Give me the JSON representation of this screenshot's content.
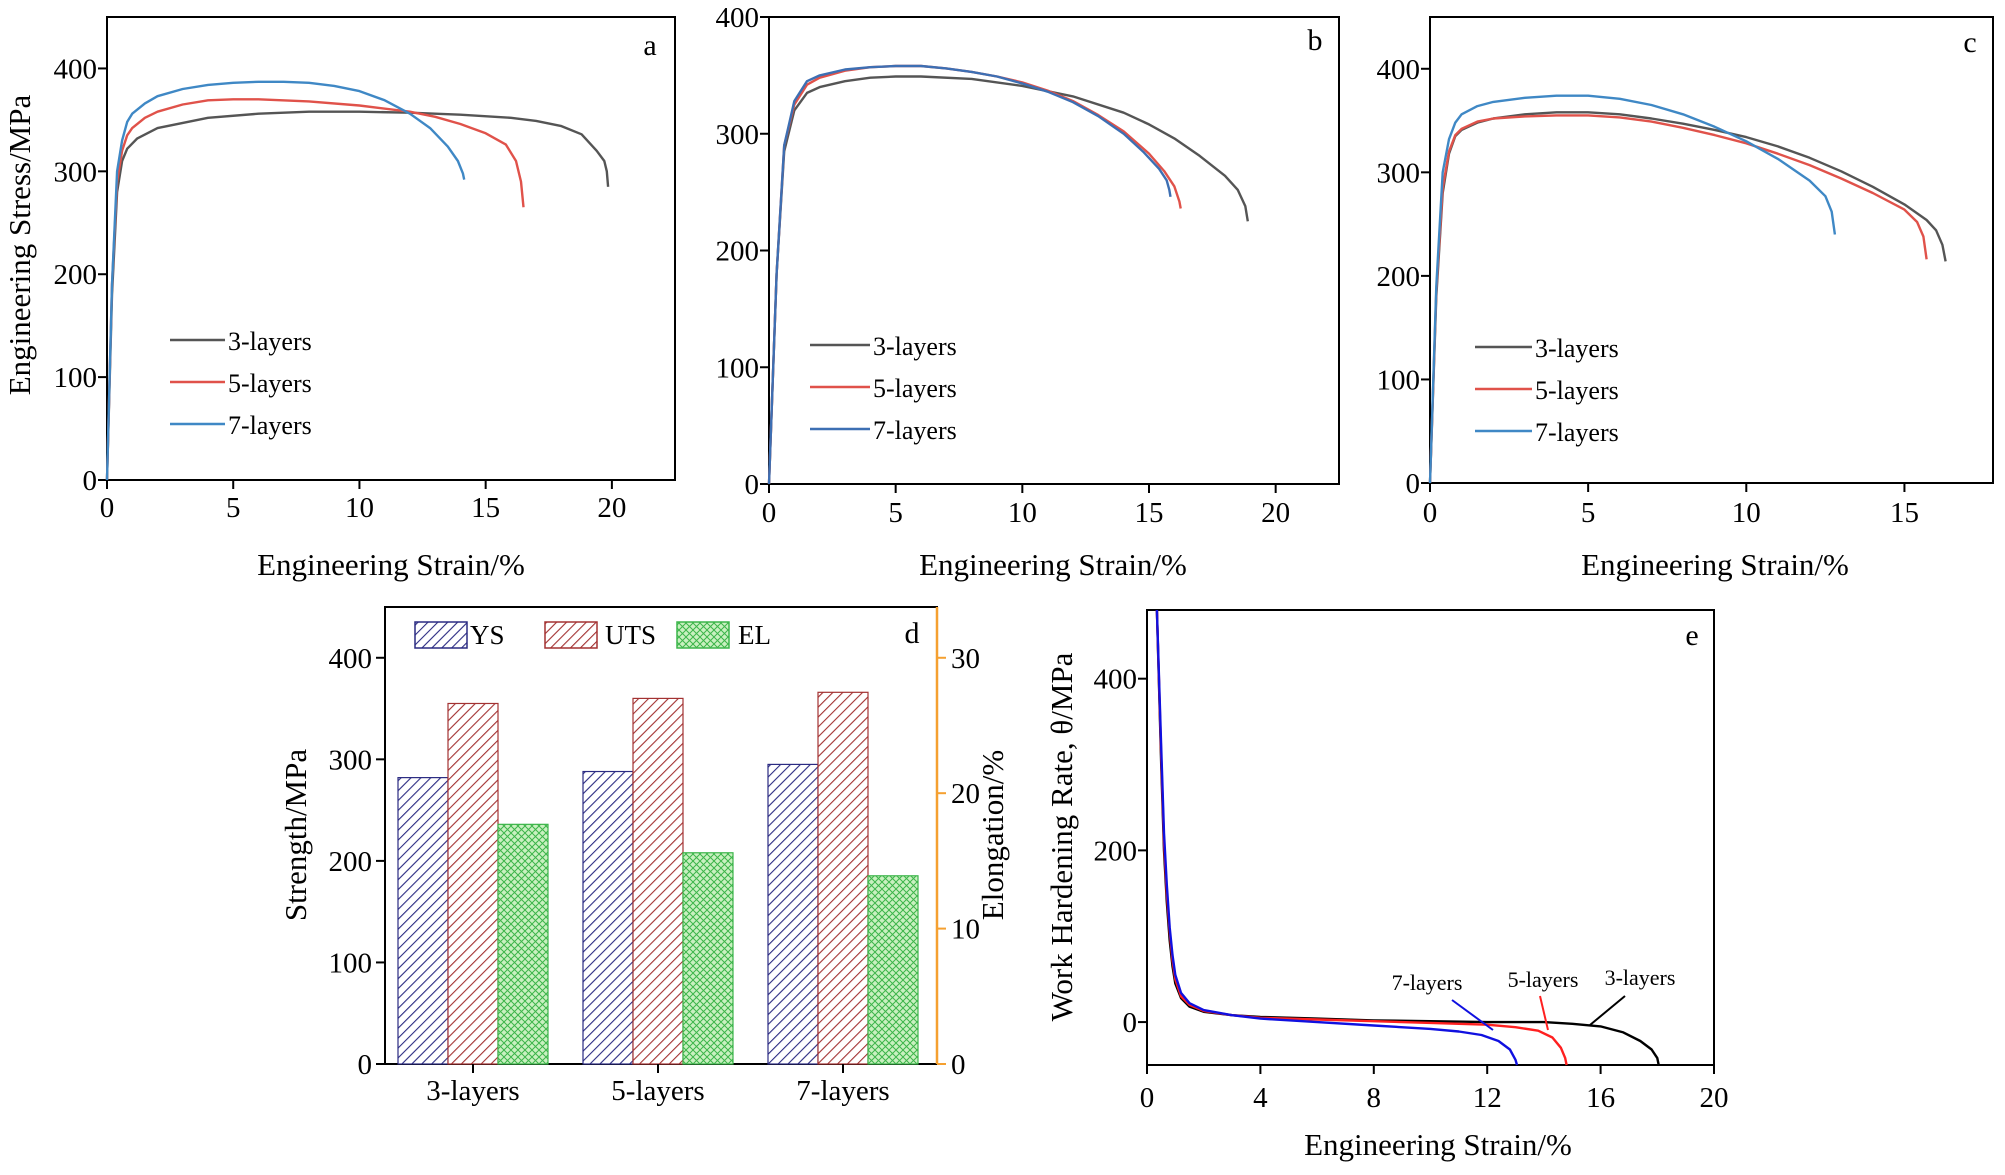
{
  "figure": {
    "panel_a": {
      "letter": "a",
      "xlabel": "Engineering Strain/%",
      "ylabel": "Engineering Stress/MPa",
      "legend": [
        "3-layers",
        "5-layers",
        "7-layers"
      ]
    },
    "panel_b": {
      "letter": "b",
      "xlabel": "Engineering Strain/%",
      "ylabel": "",
      "legend": [
        "3-layers",
        "5-layers",
        "7-layers"
      ]
    },
    "panel_c": {
      "letter": "c",
      "xlabel": "Engineering Strain/%",
      "ylabel": "",
      "legend": [
        "3-layers",
        "5-layers",
        "7-layers"
      ]
    },
    "panel_d": {
      "letter": "d",
      "ylabel_left": "Strength/MPa",
      "ylabel_right": "Elongation/%",
      "legend": [
        "YS",
        "UTS",
        "EL"
      ]
    },
    "panel_e": {
      "letter": "e",
      "xlabel": "Engineering Strain/%",
      "ylabel": "Work Hardening Rate, θ/MPa",
      "annotations": [
        "7-layers",
        "5-layers",
        "3-layers"
      ]
    }
  },
  "colors": {
    "three_layers": "#555555",
    "five_layers": "#e0524a",
    "seven_layers": "#3f88c5",
    "seven_layers_c": "#3d6fb3",
    "ys": "#2b2b82",
    "uts": "#a33232",
    "el": "#3cb54a",
    "el_fill": "#c9f0c0",
    "elongation_axis": "#f5a030",
    "e_three": "#000000",
    "e_five": "#ff2020",
    "e_seven": "#1010e0"
  },
  "chart_data": [
    {
      "id": "a",
      "type": "line",
      "xlim": [
        0,
        22.5
      ],
      "ylim": [
        0,
        450
      ],
      "xticks": [
        0,
        5,
        10,
        15,
        20
      ],
      "yticks": [
        0,
        100,
        200,
        300,
        400
      ],
      "series": [
        {
          "name": "3-layers",
          "color_key": "three_layers",
          "x": [
            0,
            0.2,
            0.4,
            0.6,
            0.8,
            1.2,
            2,
            4,
            6,
            8,
            10,
            12,
            14,
            16,
            17,
            18,
            18.8,
            19.4,
            19.7,
            19.8,
            19.85
          ],
          "y": [
            0,
            180,
            280,
            310,
            322,
            332,
            342,
            352,
            356,
            358,
            358,
            357,
            355,
            352,
            349,
            344,
            336,
            320,
            310,
            300,
            285
          ]
        },
        {
          "name": "5-layers",
          "color_key": "five_layers",
          "x": [
            0,
            0.2,
            0.4,
            0.6,
            0.8,
            1,
            1.5,
            2,
            3,
            4,
            5,
            6,
            8,
            10,
            12,
            13,
            14,
            15,
            15.8,
            16.2,
            16.4,
            16.5
          ],
          "y": [
            0,
            190,
            290,
            320,
            335,
            342,
            352,
            358,
            365,
            369,
            370,
            370,
            368,
            364,
            358,
            353,
            346,
            337,
            326,
            310,
            290,
            265
          ]
        },
        {
          "name": "7-layers",
          "color_key": "seven_layers",
          "x": [
            0,
            0.2,
            0.4,
            0.6,
            0.8,
            1,
            1.5,
            2,
            3,
            4,
            5,
            6,
            7,
            8,
            9,
            10,
            11,
            12,
            12.8,
            13.5,
            13.9,
            14.1,
            14.15
          ],
          "y": [
            0,
            190,
            300,
            330,
            348,
            356,
            366,
            373,
            380,
            384,
            386,
            387,
            387,
            386,
            383,
            378,
            369,
            356,
            342,
            324,
            310,
            298,
            292
          ]
        }
      ]
    },
    {
      "id": "b",
      "type": "line",
      "xlim": [
        0,
        22.5
      ],
      "ylim": [
        0,
        400
      ],
      "xticks": [
        0,
        5,
        10,
        15,
        20
      ],
      "yticks": [
        0,
        100,
        200,
        300,
        400
      ],
      "series": [
        {
          "name": "3-layers",
          "color_key": "three_layers",
          "x": [
            0,
            0.3,
            0.6,
            1,
            1.5,
            2,
            3,
            4,
            5,
            6,
            8,
            10,
            12,
            14,
            15,
            16,
            17,
            18,
            18.5,
            18.8,
            18.9
          ],
          "y": [
            0,
            180,
            285,
            320,
            335,
            340,
            345,
            348,
            349,
            349,
            347,
            341,
            332,
            318,
            308,
            296,
            281,
            264,
            252,
            238,
            225
          ]
        },
        {
          "name": "5-layers",
          "color_key": "five_layers",
          "x": [
            0,
            0.3,
            0.6,
            1,
            1.5,
            2,
            3,
            4,
            5,
            6,
            7,
            8,
            9,
            10,
            11,
            12,
            13,
            14,
            15,
            15.6,
            16,
            16.2,
            16.25
          ],
          "y": [
            0,
            180,
            290,
            325,
            342,
            348,
            354,
            357,
            358,
            358,
            356,
            353,
            349,
            344,
            337,
            328,
            316,
            302,
            283,
            268,
            255,
            242,
            236
          ]
        },
        {
          "name": "7-layers",
          "color_key": "seven_layers_c",
          "x": [
            0,
            0.3,
            0.6,
            1,
            1.5,
            2,
            3,
            4,
            5,
            6,
            7,
            8,
            9,
            10,
            11,
            12,
            13,
            14,
            14.8,
            15.4,
            15.7,
            15.8,
            15.85
          ],
          "y": [
            0,
            180,
            290,
            328,
            345,
            350,
            355,
            357,
            358,
            358,
            356,
            353,
            349,
            343,
            336,
            327,
            315,
            300,
            284,
            270,
            260,
            252,
            246
          ]
        }
      ]
    },
    {
      "id": "c",
      "type": "line",
      "xlim": [
        0,
        17.8
      ],
      "ylim": [
        0,
        450
      ],
      "xticks": [
        0,
        5,
        10,
        15
      ],
      "yticks": [
        0,
        100,
        200,
        300,
        400
      ],
      "series": [
        {
          "name": "3-layers",
          "color_key": "three_layers",
          "x": [
            0,
            0.2,
            0.4,
            0.6,
            0.8,
            1,
            1.5,
            2,
            3,
            4,
            5,
            6,
            7,
            8,
            9,
            10,
            11,
            12,
            13,
            14,
            15,
            15.7,
            16,
            16.2,
            16.3
          ],
          "y": [
            0,
            180,
            280,
            318,
            335,
            341,
            348,
            352,
            356,
            358,
            358,
            356,
            352,
            347,
            341,
            334,
            325,
            314,
            301,
            286,
            269,
            254,
            244,
            230,
            214
          ]
        },
        {
          "name": "5-layers",
          "color_key": "five_layers",
          "x": [
            0,
            0.2,
            0.4,
            0.6,
            0.8,
            1,
            1.5,
            2,
            3,
            4,
            5,
            6,
            7,
            8,
            9,
            10,
            11,
            12,
            13,
            14,
            15,
            15.4,
            15.6,
            15.7
          ],
          "y": [
            0,
            185,
            285,
            320,
            336,
            342,
            349,
            352,
            354,
            355,
            355,
            353,
            349,
            343,
            336,
            328,
            318,
            307,
            294,
            280,
            264,
            252,
            238,
            216
          ]
        },
        {
          "name": "7-layers",
          "color_key": "seven_layers",
          "x": [
            0,
            0.2,
            0.4,
            0.6,
            0.8,
            1,
            1.5,
            2,
            3,
            4,
            5,
            6,
            7,
            8,
            9,
            10,
            11,
            12,
            12.5,
            12.7,
            12.8
          ],
          "y": [
            0,
            190,
            300,
            332,
            348,
            356,
            364,
            368,
            372,
            374,
            374,
            371,
            365,
            356,
            344,
            330,
            313,
            292,
            277,
            262,
            240
          ]
        }
      ]
    },
    {
      "id": "d",
      "type": "bar",
      "categories": [
        "3-layers",
        "5-layers",
        "7-layers"
      ],
      "ylim": [
        0,
        450
      ],
      "y2lim": [
        0,
        33.75
      ],
      "yticks": [
        0,
        100,
        200,
        300,
        400
      ],
      "y2ticks": [
        0,
        10,
        20,
        30
      ],
      "series": [
        {
          "name": "YS",
          "axis": "left",
          "values": [
            282,
            288,
            295
          ]
        },
        {
          "name": "UTS",
          "axis": "left",
          "values": [
            355,
            360,
            366
          ]
        },
        {
          "name": "EL",
          "axis": "right",
          "values": [
            17.7,
            15.6,
            13.9
          ]
        }
      ]
    },
    {
      "id": "e",
      "type": "line",
      "xlim": [
        0,
        20
      ],
      "ylim": [
        -50,
        480
      ],
      "xticks": [
        0,
        4,
        8,
        12,
        16,
        20
      ],
      "yticks": [
        0,
        200,
        400
      ],
      "series": [
        {
          "name": "3-layers",
          "color_key": "e_three",
          "x": [
            0.35,
            0.5,
            0.6,
            0.7,
            0.8,
            0.9,
            1.0,
            1.2,
            1.5,
            2,
            3,
            4,
            6,
            8,
            10,
            12,
            14,
            15,
            16,
            16.8,
            17.4,
            17.8,
            18,
            18.05
          ],
          "y": [
            480,
            300,
            200,
            140,
            95,
            65,
            45,
            28,
            18,
            12,
            8,
            6,
            4,
            2,
            1,
            0,
            0,
            -2,
            -5,
            -12,
            -22,
            -32,
            -42,
            -50
          ]
        },
        {
          "name": "5-layers",
          "color_key": "e_five",
          "x": [
            0.35,
            0.5,
            0.6,
            0.7,
            0.8,
            0.9,
            1.0,
            1.2,
            1.5,
            2,
            3,
            4,
            6,
            8,
            10,
            12,
            13,
            13.8,
            14.3,
            14.6,
            14.75,
            14.8
          ],
          "y": [
            480,
            310,
            210,
            150,
            105,
            72,
            50,
            30,
            20,
            13,
            8,
            5,
            3,
            1,
            -1,
            -3,
            -6,
            -10,
            -18,
            -30,
            -42,
            -50
          ]
        },
        {
          "name": "7-layers",
          "color_key": "e_seven",
          "x": [
            0.35,
            0.5,
            0.6,
            0.7,
            0.8,
            0.9,
            1.0,
            1.2,
            1.5,
            2,
            3,
            4,
            6,
            8,
            10,
            11,
            11.8,
            12.4,
            12.8,
            13,
            13.05
          ],
          "y": [
            480,
            320,
            220,
            160,
            110,
            78,
            55,
            34,
            22,
            14,
            8,
            4,
            0,
            -4,
            -8,
            -11,
            -15,
            -22,
            -32,
            -44,
            -50
          ]
        }
      ]
    }
  ]
}
